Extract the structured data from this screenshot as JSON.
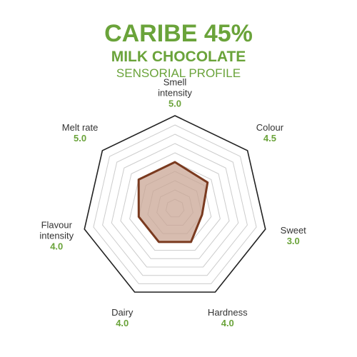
{
  "chart_data": {
    "type": "radar",
    "title": "CARIBE 45%",
    "subtitle": "MILK CHOCOLATE",
    "caption": "SENSORIAL PROFILE",
    "categories": [
      "Smell intensity",
      "Colour",
      "Sweet",
      "Hardness",
      "Dairy",
      "Flavour intensity",
      "Melt rate"
    ],
    "values": [
      5.0,
      4.5,
      3.0,
      4.0,
      4.0,
      4.0,
      5.0
    ],
    "value_labels": [
      "5.0",
      "4.5",
      "3.0",
      "4.0",
      "4.0",
      "4.0",
      "5.0"
    ],
    "ylim": [
      0,
      10
    ],
    "yticks": [
      1,
      2,
      3,
      4,
      5,
      6,
      7,
      8,
      9,
      10
    ],
    "grid": true,
    "color": "#7a3a1f",
    "fill": "#c9a594"
  }
}
